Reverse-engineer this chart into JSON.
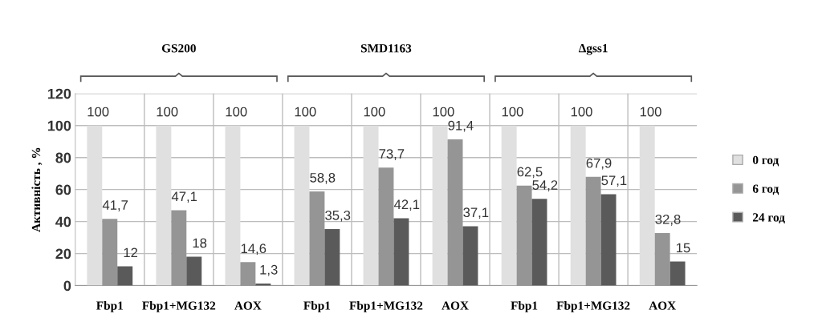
{
  "chart_data": {
    "type": "bar",
    "ylabel": "Активність , %",
    "categories": [
      "Fbp1",
      "Fbp1+MG132",
      "AOX",
      "Fbp1",
      "Fbp1+MG132",
      "AOX",
      "Fbp1",
      "Fbp1+MG132",
      "AOX"
    ],
    "series": [
      {
        "name": "0 год",
        "color": "#e0e0e0",
        "values": [
          100,
          100,
          100,
          100,
          100,
          100,
          100,
          100,
          100
        ],
        "value_labels": [
          "100",
          "100",
          "100",
          "100",
          "100",
          "100",
          "100",
          "100",
          "100"
        ]
      },
      {
        "name": "6 год",
        "color": "#959595",
        "values": [
          41.7,
          47.1,
          14.6,
          58.8,
          73.7,
          91.4,
          62.5,
          67.9,
          32.8
        ],
        "value_labels": [
          "41,7",
          "47,1",
          "14,6",
          "58,8",
          "73,7",
          "91,4",
          "62,5",
          "67,9",
          "32,8"
        ]
      },
      {
        "name": "24 год",
        "color": "#5a5a5a",
        "values": [
          12,
          18,
          1.3,
          35.3,
          42.1,
          37.1,
          54.2,
          57.1,
          15
        ],
        "value_labels": [
          "12",
          "18",
          "1,3",
          "35,3",
          "42,1",
          "37,1",
          "54,2",
          "57,1",
          "15"
        ]
      }
    ],
    "annotations": [
      "GS200",
      "SMD1163",
      "Δgss1"
    ],
    "ylim": [
      0,
      120
    ],
    "yticks": [
      0,
      20,
      40,
      60,
      80,
      100,
      120
    ],
    "grid": true,
    "legend": "right"
  }
}
